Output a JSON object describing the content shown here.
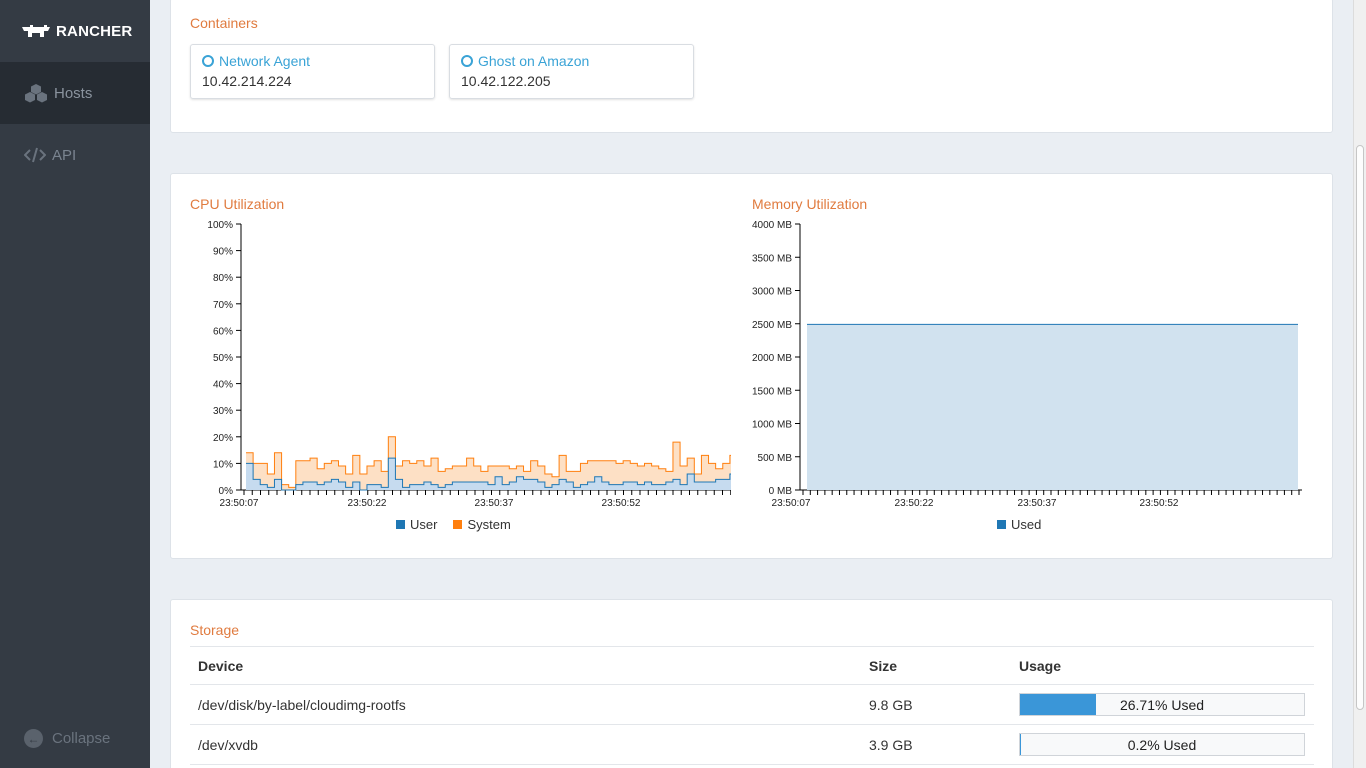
{
  "brand": {
    "name": "RANCHER"
  },
  "nav": [
    {
      "label": "Hosts",
      "icon": "cubes-icon",
      "active": true
    },
    {
      "label": "API",
      "icon": "code-icon",
      "active": false
    }
  ],
  "collapse_label": "Collapse",
  "containers": {
    "title": "Containers",
    "items": [
      {
        "name": "Network Agent",
        "ip": "10.42.214.224"
      },
      {
        "name": "Ghost on Amazon",
        "ip": "10.42.122.205"
      }
    ]
  },
  "chart_data": [
    {
      "type": "area",
      "title": "CPU Utilization",
      "ylim": [
        0,
        100
      ],
      "yticks": [
        "0%",
        "10%",
        "20%",
        "30%",
        "40%",
        "50%",
        "60%",
        "70%",
        "80%",
        "90%",
        "100%"
      ],
      "xticks": [
        "23:50:07",
        "23:50:22",
        "23:50:37",
        "23:50:52"
      ],
      "series": [
        {
          "name": "User",
          "color": "#1f77b4",
          "values": [
            10,
            4,
            2,
            1,
            4,
            0,
            0,
            2,
            3,
            3,
            2,
            3,
            4,
            3,
            1,
            3,
            0,
            2,
            2,
            1,
            12,
            4,
            1,
            2,
            2,
            3,
            2,
            1,
            2,
            3,
            3,
            3,
            3,
            3,
            2,
            5,
            2,
            3,
            5,
            4,
            4,
            3,
            1,
            2,
            4,
            3,
            1,
            2,
            3,
            5,
            3,
            2,
            2,
            3,
            3,
            2,
            3,
            2,
            2,
            3,
            4,
            2,
            6,
            3,
            3,
            3,
            4,
            4,
            6
          ]
        },
        {
          "name": "System",
          "color": "#ff7f0e",
          "values": [
            4,
            6,
            8,
            5,
            10,
            2,
            1,
            9,
            8,
            9,
            6,
            7,
            7,
            6,
            5,
            10,
            6,
            7,
            9,
            6,
            8,
            5,
            10,
            8,
            9,
            6,
            10,
            6,
            6,
            6,
            6,
            9,
            6,
            4,
            7,
            4,
            7,
            5,
            4,
            3,
            7,
            6,
            5,
            3,
            9,
            4,
            6,
            8,
            8,
            6,
            8,
            9,
            8,
            8,
            7,
            7,
            7,
            7,
            6,
            4,
            14,
            7,
            6,
            3,
            10,
            7,
            4,
            6,
            7
          ]
        }
      ],
      "legend": [
        "User",
        "System"
      ]
    },
    {
      "type": "area",
      "title": "Memory Utilization",
      "ylim": [
        0,
        4000
      ],
      "yticks": [
        "0 MB",
        "500 MB",
        "1000 MB",
        "1500 MB",
        "2000 MB",
        "2500 MB",
        "3000 MB",
        "3500 MB",
        "4000 MB"
      ],
      "xticks": [
        "23:50:07",
        "23:50:22",
        "23:50:37",
        "23:50:52"
      ],
      "series": [
        {
          "name": "Used",
          "color": "#1f77b4",
          "values": [
            2490,
            2490,
            2490,
            2490,
            2490,
            2490,
            2490,
            2490,
            2490,
            2490
          ]
        }
      ],
      "legend": [
        "Used"
      ]
    }
  ],
  "storage": {
    "title": "Storage",
    "headers": {
      "device": "Device",
      "size": "Size",
      "usage": "Usage"
    },
    "rows": [
      {
        "device": "/dev/disk/by-label/cloudimg-rootfs",
        "size": "9.8 GB",
        "usage_pct": 26.71,
        "usage_label": "26.71% Used"
      },
      {
        "device": "/dev/xvdb",
        "size": "3.9 GB",
        "usage_pct": 0.2,
        "usage_label": "0.2% Used"
      }
    ]
  },
  "colors": {
    "accent": "#e07b3f",
    "link": "#3aa3d6",
    "sidebar": "#343b44",
    "bar_fill": "#3a96d8"
  }
}
